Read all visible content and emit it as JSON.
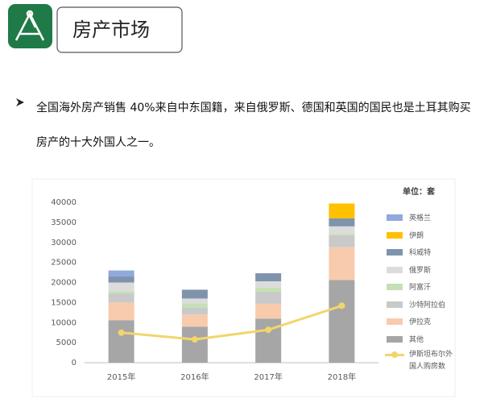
{
  "header": {
    "title": "房产市场"
  },
  "bullet": "全国海外房产销售 40%来自中东国籍，来自俄罗斯、德国和英国的国民也是土耳其购买房产的十大外国人之一。",
  "chart_data": {
    "type": "stacked_bar_line",
    "unit_label": "单位：套",
    "categories": [
      "2015年",
      "2016年",
      "2017年",
      "2018年"
    ],
    "series": [
      {
        "name": "其他",
        "color": "#a6a6a6",
        "values": [
          10600,
          9000,
          11000,
          20600
        ]
      },
      {
        "name": "伊拉克",
        "color": "#f8cbad",
        "values": [
          4400,
          3000,
          3700,
          8200
        ]
      },
      {
        "name": "沙特阿拉伯",
        "color": "#c9c9c9",
        "values": [
          2300,
          1800,
          3000,
          3000
        ]
      },
      {
        "name": "阿富汗",
        "color": "#c5e0b4",
        "values": [
          500,
          1000,
          1000,
          400
        ]
      },
      {
        "name": "俄罗斯",
        "color": "#dcdcdc",
        "values": [
          2200,
          1200,
          1600,
          1800
        ]
      },
      {
        "name": "科威特",
        "color": "#7f93ab",
        "values": [
          1500,
          2200,
          2000,
          2000
        ]
      },
      {
        "name": "伊朗",
        "color": "#ffc000",
        "values": [
          0,
          0,
          0,
          3700
        ]
      },
      {
        "name": "英格兰",
        "color": "#8faadc",
        "values": [
          1500,
          0,
          0,
          0
        ]
      }
    ],
    "line": {
      "name": "伊斯坦布尔外国人购房数",
      "color": "#f3d56b",
      "values": [
        7500,
        5800,
        8200,
        14200
      ]
    },
    "ylim": [
      0,
      40000
    ],
    "yticks": [
      0,
      5000,
      10000,
      15000,
      20000,
      25000,
      30000,
      35000,
      40000
    ],
    "grid": false
  }
}
